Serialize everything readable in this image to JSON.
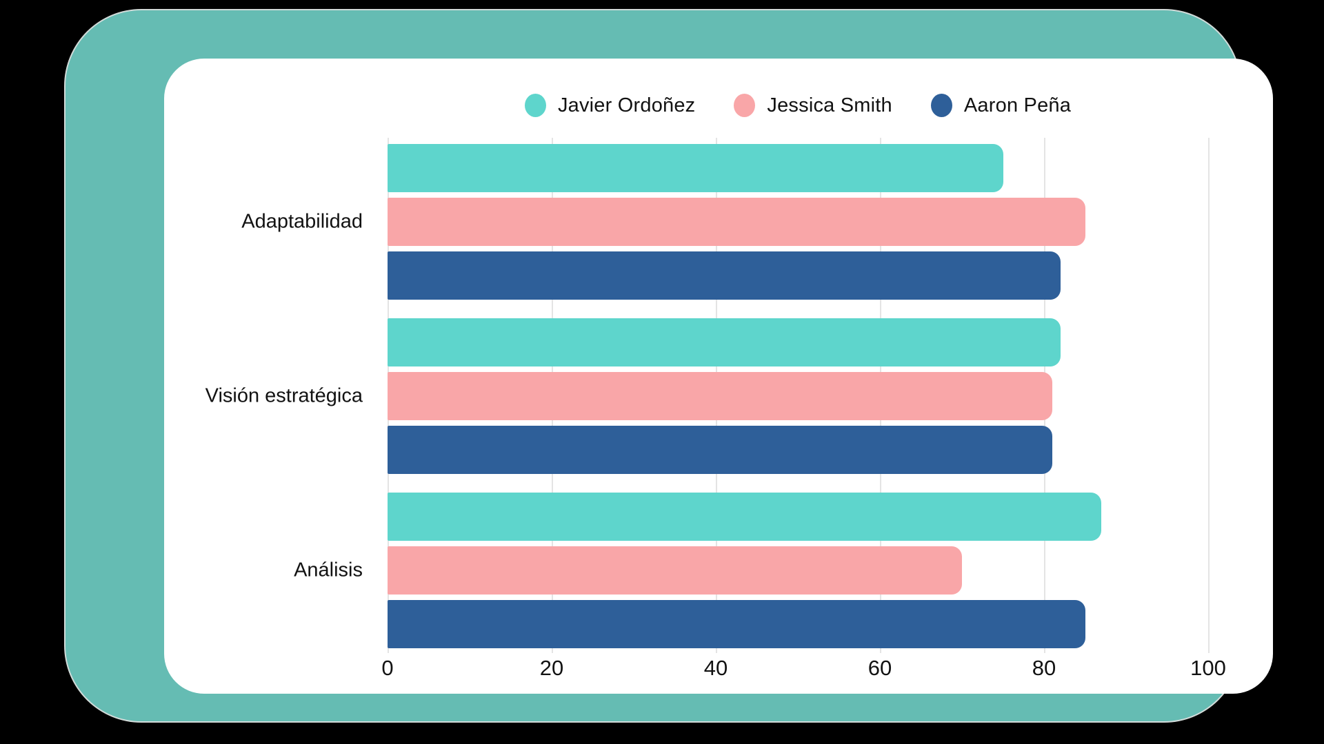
{
  "chart_data": {
    "type": "bar",
    "orientation": "horizontal",
    "title": "",
    "categories": [
      "Adaptabilidad",
      "Visión estratégica",
      "Análisis"
    ],
    "series": [
      {
        "name": "Javier Ordoñez",
        "color": "#5ed5cc",
        "values": [
          75,
          82,
          87
        ]
      },
      {
        "name": "Jessica Smith",
        "color": "#f9a6a8",
        "values": [
          85,
          81,
          70
        ]
      },
      {
        "name": "Aaron Peña",
        "color": "#2e5f99",
        "values": [
          82,
          81,
          85
        ]
      }
    ],
    "x_ticks": [
      0,
      20,
      40,
      60,
      80,
      100
    ],
    "xlim": [
      0,
      100
    ],
    "legend_position": "top",
    "grid": "vertical-gridlines"
  },
  "colors": {
    "page_background": "#000000",
    "frame": "#65bcb3",
    "card": "#ffffff",
    "gridline": "#e4e4e4",
    "text": "#121212"
  }
}
